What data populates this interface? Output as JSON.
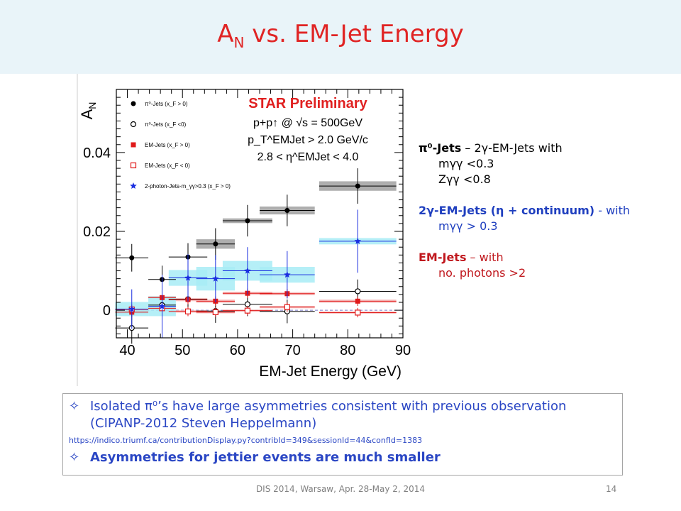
{
  "slide": {
    "title_main": "A",
    "title_sub": "N",
    "title_rest": " vs. EM-Jet Energy"
  },
  "legend_notes": {
    "pi0_head": "π⁰-Jets",
    "pi0_rest": " – 2γ-EM-Jets  with",
    "pi0_c1": "mγγ <0.3",
    "pi0_c2": "Zγγ <0.8",
    "twog_head": "2γ-EM-Jets (η + continuum)",
    "twog_rest": " - with",
    "twog_c1": "mγγ > 0.3",
    "em_head": "EM-Jets",
    "em_rest": " – with",
    "em_c1": "no. photons >2"
  },
  "bullets": {
    "b1": "Isolated π⁰’s have large asymmetries consistent with previous observation (CIPANP-2012  Steven Heppelmann)",
    "url": "https://indico.triumf.ca/contributionDisplay.py?contribId=349&sessionId=44&confId=1383",
    "b2": "Asymmetries for jettier events are much smaller",
    "mark": "✧"
  },
  "footer": {
    "text": "DIS 2014,  Warsaw,  Apr. 28-May 2, 2014",
    "page": "14"
  },
  "chart_data": {
    "type": "scatter",
    "ylabel": "A",
    "ylabel_sub": "N",
    "xlabel": "EM-Jet Energy (GeV)",
    "xlim": [
      38,
      90
    ],
    "ylim": [
      -0.007,
      0.056
    ],
    "xticks": [
      40,
      50,
      60,
      70,
      80,
      90
    ],
    "yticks": [
      0,
      0.02,
      0.04
    ],
    "ytick_labels": [
      "0",
      "0.02",
      "0.04"
    ],
    "legend_placement": "top-left",
    "annotation": {
      "title": "STAR Preliminary",
      "l1": "p+p↑  @  √s = 500GeV",
      "l2": "p_T^EMJet > 2.0 GeV/c",
      "l3": "2.8 < η^EMJet < 4.0"
    },
    "series": [
      {
        "name": "π⁰-Jets (x_F > 0)",
        "marker": "circle-filled",
        "color": "#000000",
        "band_color": "#a0a0a0",
        "x": [
          40.8,
          46.3,
          51.0,
          56.0,
          61.8,
          69.0,
          81.8
        ],
        "y": [
          0.0133,
          0.0078,
          0.0135,
          0.0168,
          0.0227,
          0.0253,
          0.0315
        ],
        "xerr": [
          3.0,
          2.5,
          3.5,
          3.5,
          4.5,
          5.0,
          7.0
        ],
        "yerr": [
          0.0035,
          0.0035,
          0.0035,
          0.004,
          0.004,
          0.004,
          0.0045
        ],
        "syst": [
          0,
          0,
          0,
          0.0012,
          0.0006,
          0.001,
          0.0012
        ]
      },
      {
        "name": "π⁰-Jets (x_F <0)",
        "marker": "circle-open",
        "color": "#000000",
        "band_color": "#d0d0d0",
        "x": [
          40.8,
          46.3,
          51.0,
          56.0,
          61.8,
          69.0,
          81.8
        ],
        "y": [
          -0.0045,
          0.0013,
          0.0028,
          -0.0002,
          0.0015,
          -0.0003,
          0.0048
        ],
        "xerr": [
          3.0,
          2.5,
          3.5,
          3.5,
          4.5,
          5.0,
          7.0
        ],
        "yerr": [
          0.004,
          0.003,
          0.003,
          0.003,
          0.003,
          0.003,
          0.003
        ],
        "syst": [
          0,
          0,
          0,
          0,
          0,
          0,
          0
        ]
      },
      {
        "name": "EM-Jets (x_F > 0)",
        "marker": "square-filled",
        "color": "#e01a1a",
        "band_color": "#f4b8b8",
        "x": [
          40.8,
          46.3,
          51.0,
          56.0,
          61.8,
          69.0,
          81.8
        ],
        "y": [
          -0.0005,
          0.0032,
          0.0027,
          0.0023,
          0.0043,
          0.0042,
          0.0023
        ],
        "xerr": [
          3.0,
          2.5,
          3.5,
          3.5,
          4.5,
          5.0,
          7.0
        ],
        "yerr": [
          0.0012,
          0.0012,
          0.0012,
          0.0012,
          0.0012,
          0.0012,
          0.0012
        ],
        "syst": [
          0.0004,
          0.0004,
          0.0004,
          0.0004,
          0.0004,
          0.0004,
          0.0004
        ]
      },
      {
        "name": "EM-Jets (x_F < 0)",
        "marker": "square-open",
        "color": "#e01a1a",
        "band_color": "#f4b8b8",
        "x": [
          40.8,
          46.3,
          51.0,
          56.0,
          61.8,
          69.0,
          81.8
        ],
        "y": [
          0.0002,
          0.0005,
          -0.0003,
          -0.0005,
          -0.0001,
          0.0008,
          -0.0006
        ],
        "xerr": [
          3.0,
          2.5,
          3.5,
          3.5,
          4.5,
          5.0,
          7.0
        ],
        "yerr": [
          0.0012,
          0.0012,
          0.0012,
          0.0012,
          0.0012,
          0.0012,
          0.0012
        ],
        "syst": [
          0.0003,
          0.0003,
          0.0003,
          0.0003,
          0.0003,
          0.0003,
          0.0003
        ]
      },
      {
        "name": "2-photon-Jets-m_γγ>0.3 (x_F > 0)",
        "marker": "star",
        "color": "#1a2ee0",
        "band_color": "#a8ecf6",
        "x": [
          40.8,
          46.3,
          51.0,
          56.0,
          61.8,
          69.0,
          81.8
        ],
        "y": [
          0.0003,
          0.001,
          0.0082,
          0.008,
          0.01,
          0.009,
          0.0175
        ],
        "xerr": [
          3.0,
          2.5,
          3.5,
          3.5,
          4.5,
          5.0,
          7.0
        ],
        "yerr": [
          0.005,
          0.008,
          0.006,
          0.006,
          0.006,
          0.006,
          0.008
        ],
        "syst": [
          0.0018,
          0.0025,
          0.002,
          0.003,
          0.0025,
          0.002,
          0.0008
        ]
      }
    ]
  }
}
